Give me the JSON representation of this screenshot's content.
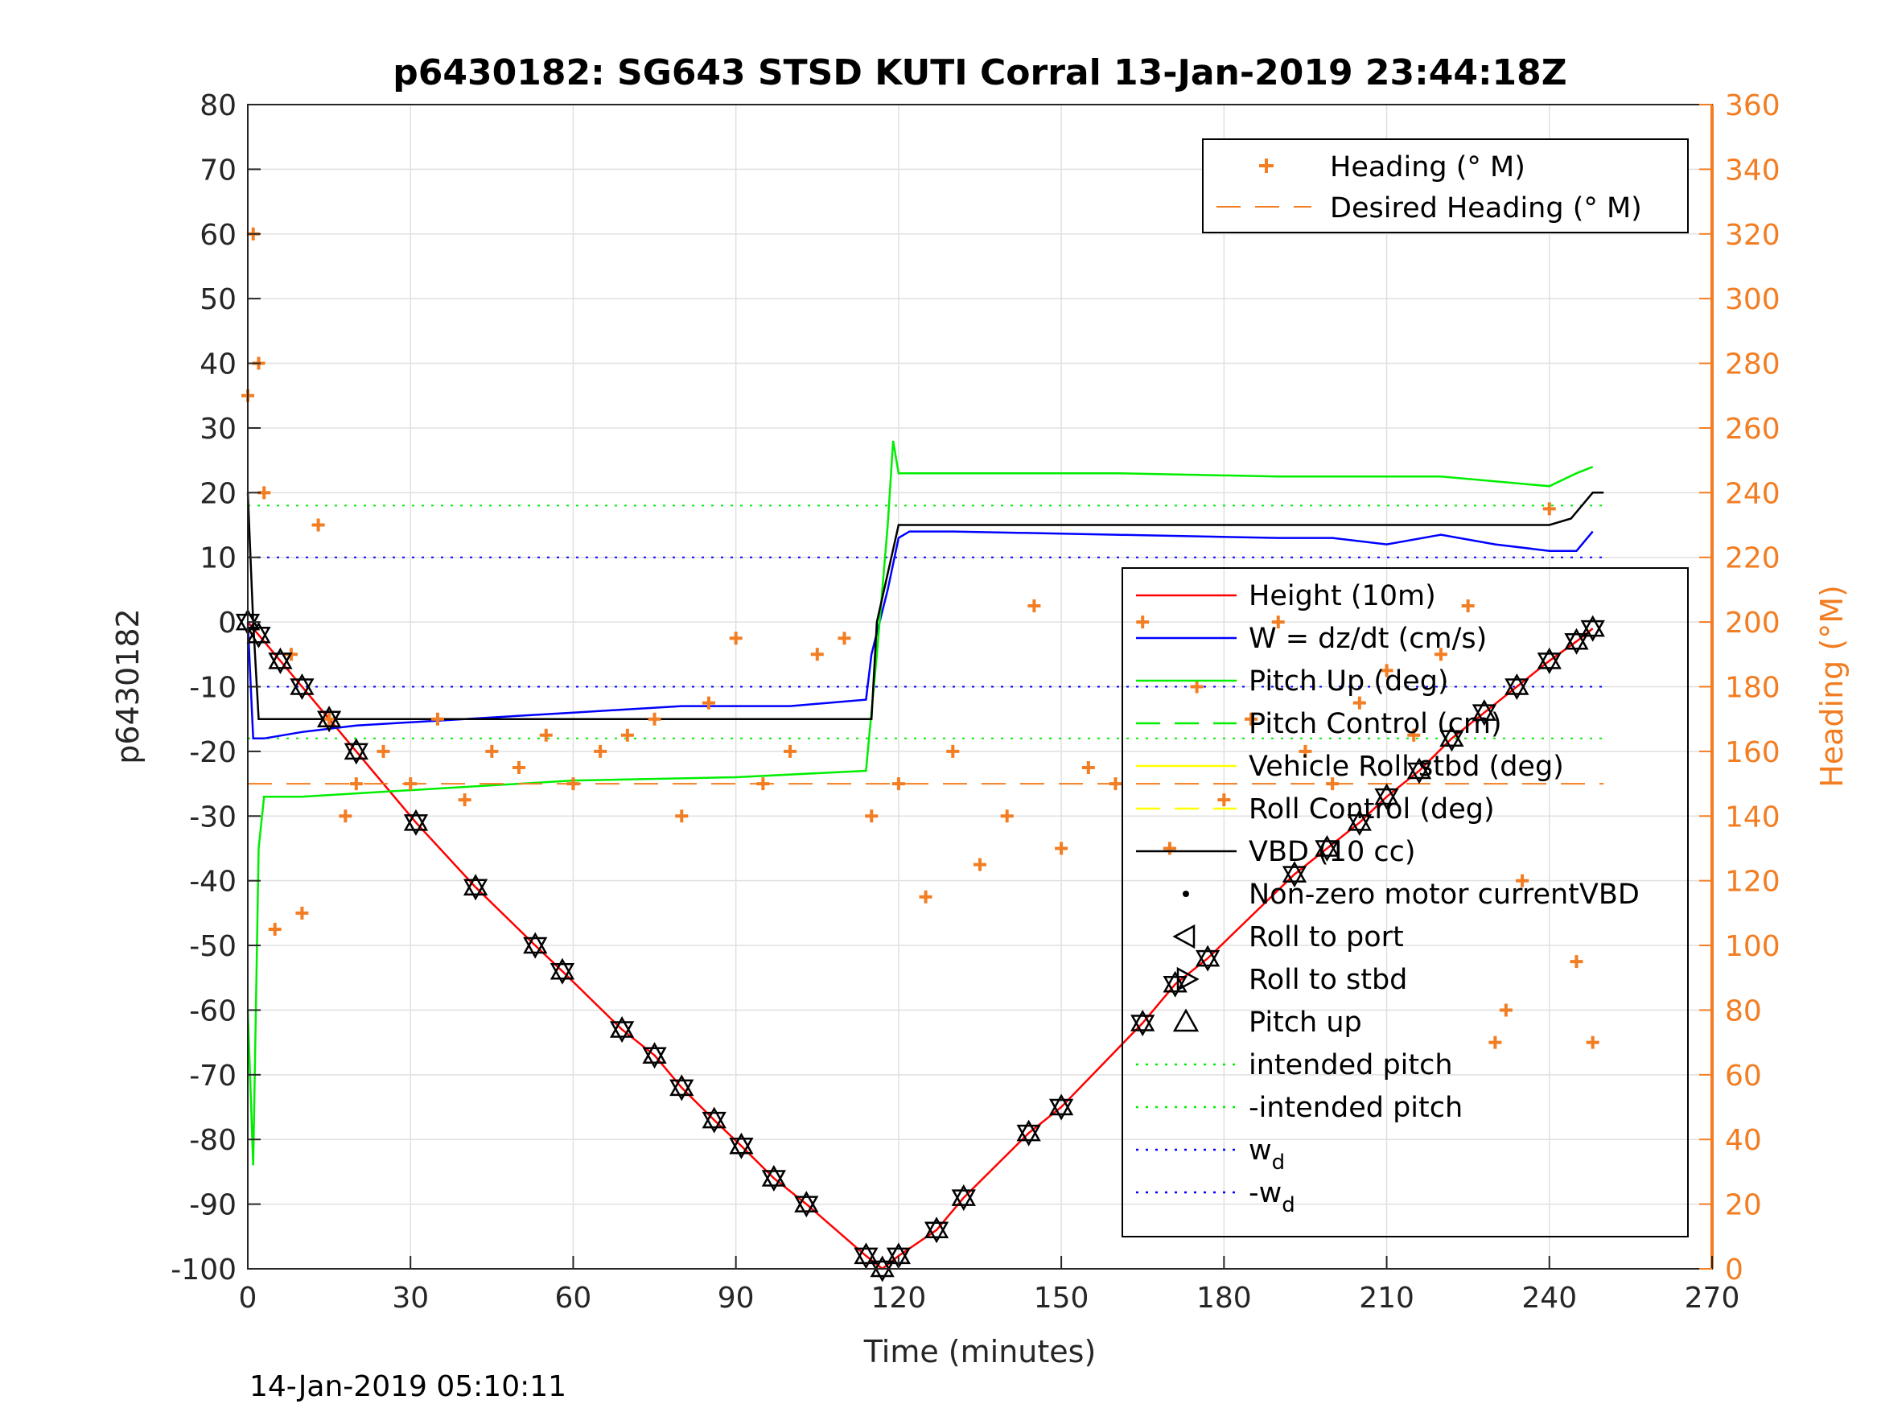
{
  "chart_data": {
    "type": "line",
    "title": "p6430182: SG643 STSD KUTI Corral 13-Jan-2019 23:44:18Z",
    "xlabel": "Time (minutes)",
    "ylabel": "p6430182",
    "ylabel_right": "Heading (°M)",
    "footer": "14-Jan-2019 05:10:11",
    "xlim": [
      0,
      270
    ],
    "ylim": [
      -100,
      80
    ],
    "ylim_right": [
      0,
      360
    ],
    "x_ticks": [
      0,
      30,
      60,
      90,
      120,
      150,
      180,
      210,
      240,
      270
    ],
    "y_ticks": [
      80,
      70,
      60,
      50,
      40,
      30,
      20,
      10,
      0,
      -10,
      -20,
      -30,
      -40,
      -50,
      -60,
      -70,
      -80,
      -90,
      -100
    ],
    "y_right_ticks": [
      360,
      340,
      320,
      300,
      280,
      260,
      240,
      220,
      200,
      180,
      160,
      140,
      120,
      100,
      80,
      60,
      40,
      20,
      0
    ],
    "grid": true,
    "colors": {
      "height": "#ff0000",
      "w": "#0000ff",
      "pitch": "#00ee00",
      "roll": "#ffff00",
      "vbd": "#000000",
      "heading": "#f27d22",
      "axis": "#262626"
    },
    "legend_top": {
      "placement": "top-right",
      "entries": [
        "Heading (° M)",
        "Desired Heading (° M)"
      ]
    },
    "legend_main": {
      "placement": "right",
      "entries": [
        "Height (10m)",
        "W = dz/dt (cm/s)",
        "Pitch Up (deg)",
        "Pitch Control (cm)",
        "Vehicle Roll stbd (deg)",
        "Roll Control (deg)",
        "VBD (10 cc)",
        "Non-zero motor currentVBD",
        "Roll to port",
        "Roll to stbd",
        "Pitch up",
        "intended pitch",
        "-intended pitch",
        "w",
        "-w"
      ],
      "subscript": "d"
    },
    "series": [
      {
        "name": "Height (10m)",
        "x": [
          0,
          2,
          6,
          10,
          15,
          20,
          31,
          42,
          53,
          58,
          69,
          75,
          80,
          86,
          91,
          97,
          103,
          114,
          117,
          120,
          127,
          132,
          144,
          150,
          165,
          171,
          177,
          193,
          199,
          205,
          210,
          216,
          222,
          228,
          234,
          240,
          245,
          248
        ],
        "y": [
          0,
          -2,
          -6,
          -10,
          -15,
          -20,
          -31,
          -41,
          -50,
          -54,
          -63,
          -67,
          -72,
          -77,
          -81,
          -86,
          -90,
          -98,
          -100,
          -98,
          -94,
          -89,
          -79,
          -75,
          -62,
          -56,
          -52,
          -39,
          -35,
          -31,
          -27,
          -23,
          -18,
          -14,
          -10,
          -6,
          -3,
          -1
        ]
      },
      {
        "name": "W = dz/dt (cm/s)",
        "x": [
          0,
          1,
          3,
          10,
          20,
          40,
          60,
          80,
          100,
          114,
          115,
          118,
          120,
          122,
          130,
          160,
          190,
          200,
          210,
          220,
          230,
          240,
          245,
          248
        ],
        "y": [
          0,
          -18,
          -18,
          -17,
          -16,
          -15,
          -14,
          -13,
          -13,
          -12,
          -5,
          5,
          13,
          14,
          14,
          13.5,
          13,
          13,
          12,
          13.5,
          12,
          11,
          11,
          14
        ]
      },
      {
        "name": "Pitch Up (deg)",
        "x": [
          0,
          1,
          2,
          3,
          10,
          30,
          60,
          90,
          114,
          116,
          118,
          119,
          120,
          130,
          160,
          190,
          220,
          240,
          245,
          248
        ],
        "y": [
          -60,
          -84,
          -35,
          -27,
          -27,
          -26,
          -24.5,
          -24,
          -23,
          -5,
          15,
          28,
          23,
          23,
          23,
          22.5,
          22.5,
          21,
          23,
          24
        ]
      },
      {
        "name": "VBD (10 cc)",
        "x": [
          0,
          1,
          2,
          115,
          116,
          120,
          240,
          244,
          248,
          250
        ],
        "y": [
          20,
          0,
          -15,
          -15,
          0,
          15,
          15,
          16,
          20,
          20
        ]
      },
      {
        "name": "Heading (° M)",
        "x": [
          0,
          1,
          2,
          3,
          5,
          8,
          10,
          13,
          15,
          18,
          20,
          25,
          30,
          35,
          40,
          45,
          50,
          55,
          60,
          65,
          70,
          75,
          80,
          85,
          90,
          95,
          100,
          105,
          110,
          115,
          120,
          125,
          130,
          135,
          140,
          145,
          150,
          155,
          160,
          165,
          170,
          175,
          180,
          185,
          190,
          195,
          200,
          205,
          210,
          215,
          220,
          225,
          230,
          232,
          235,
          240,
          245,
          248
        ],
        "y": [
          270,
          320,
          280,
          240,
          105,
          190,
          110,
          230,
          170,
          140,
          150,
          160,
          150,
          170,
          145,
          160,
          155,
          165,
          150,
          160,
          165,
          170,
          140,
          175,
          195,
          150,
          160,
          190,
          195,
          140,
          150,
          115,
          160,
          125,
          140,
          205,
          130,
          155,
          150,
          200,
          130,
          180,
          145,
          170,
          200,
          160,
          150,
          175,
          185,
          165,
          190,
          205,
          70,
          80,
          120,
          235,
          95,
          70
        ]
      },
      {
        "name": "Desired Heading (° M)",
        "x": [
          0,
          250
        ],
        "y": [
          150,
          150
        ]
      }
    ],
    "reference_lines": [
      {
        "name": "intended pitch",
        "y": 18
      },
      {
        "name": "-intended pitch",
        "y": -18
      },
      {
        "name": "w_d",
        "y": 10
      },
      {
        "name": "-w_d",
        "y": -10
      }
    ]
  }
}
